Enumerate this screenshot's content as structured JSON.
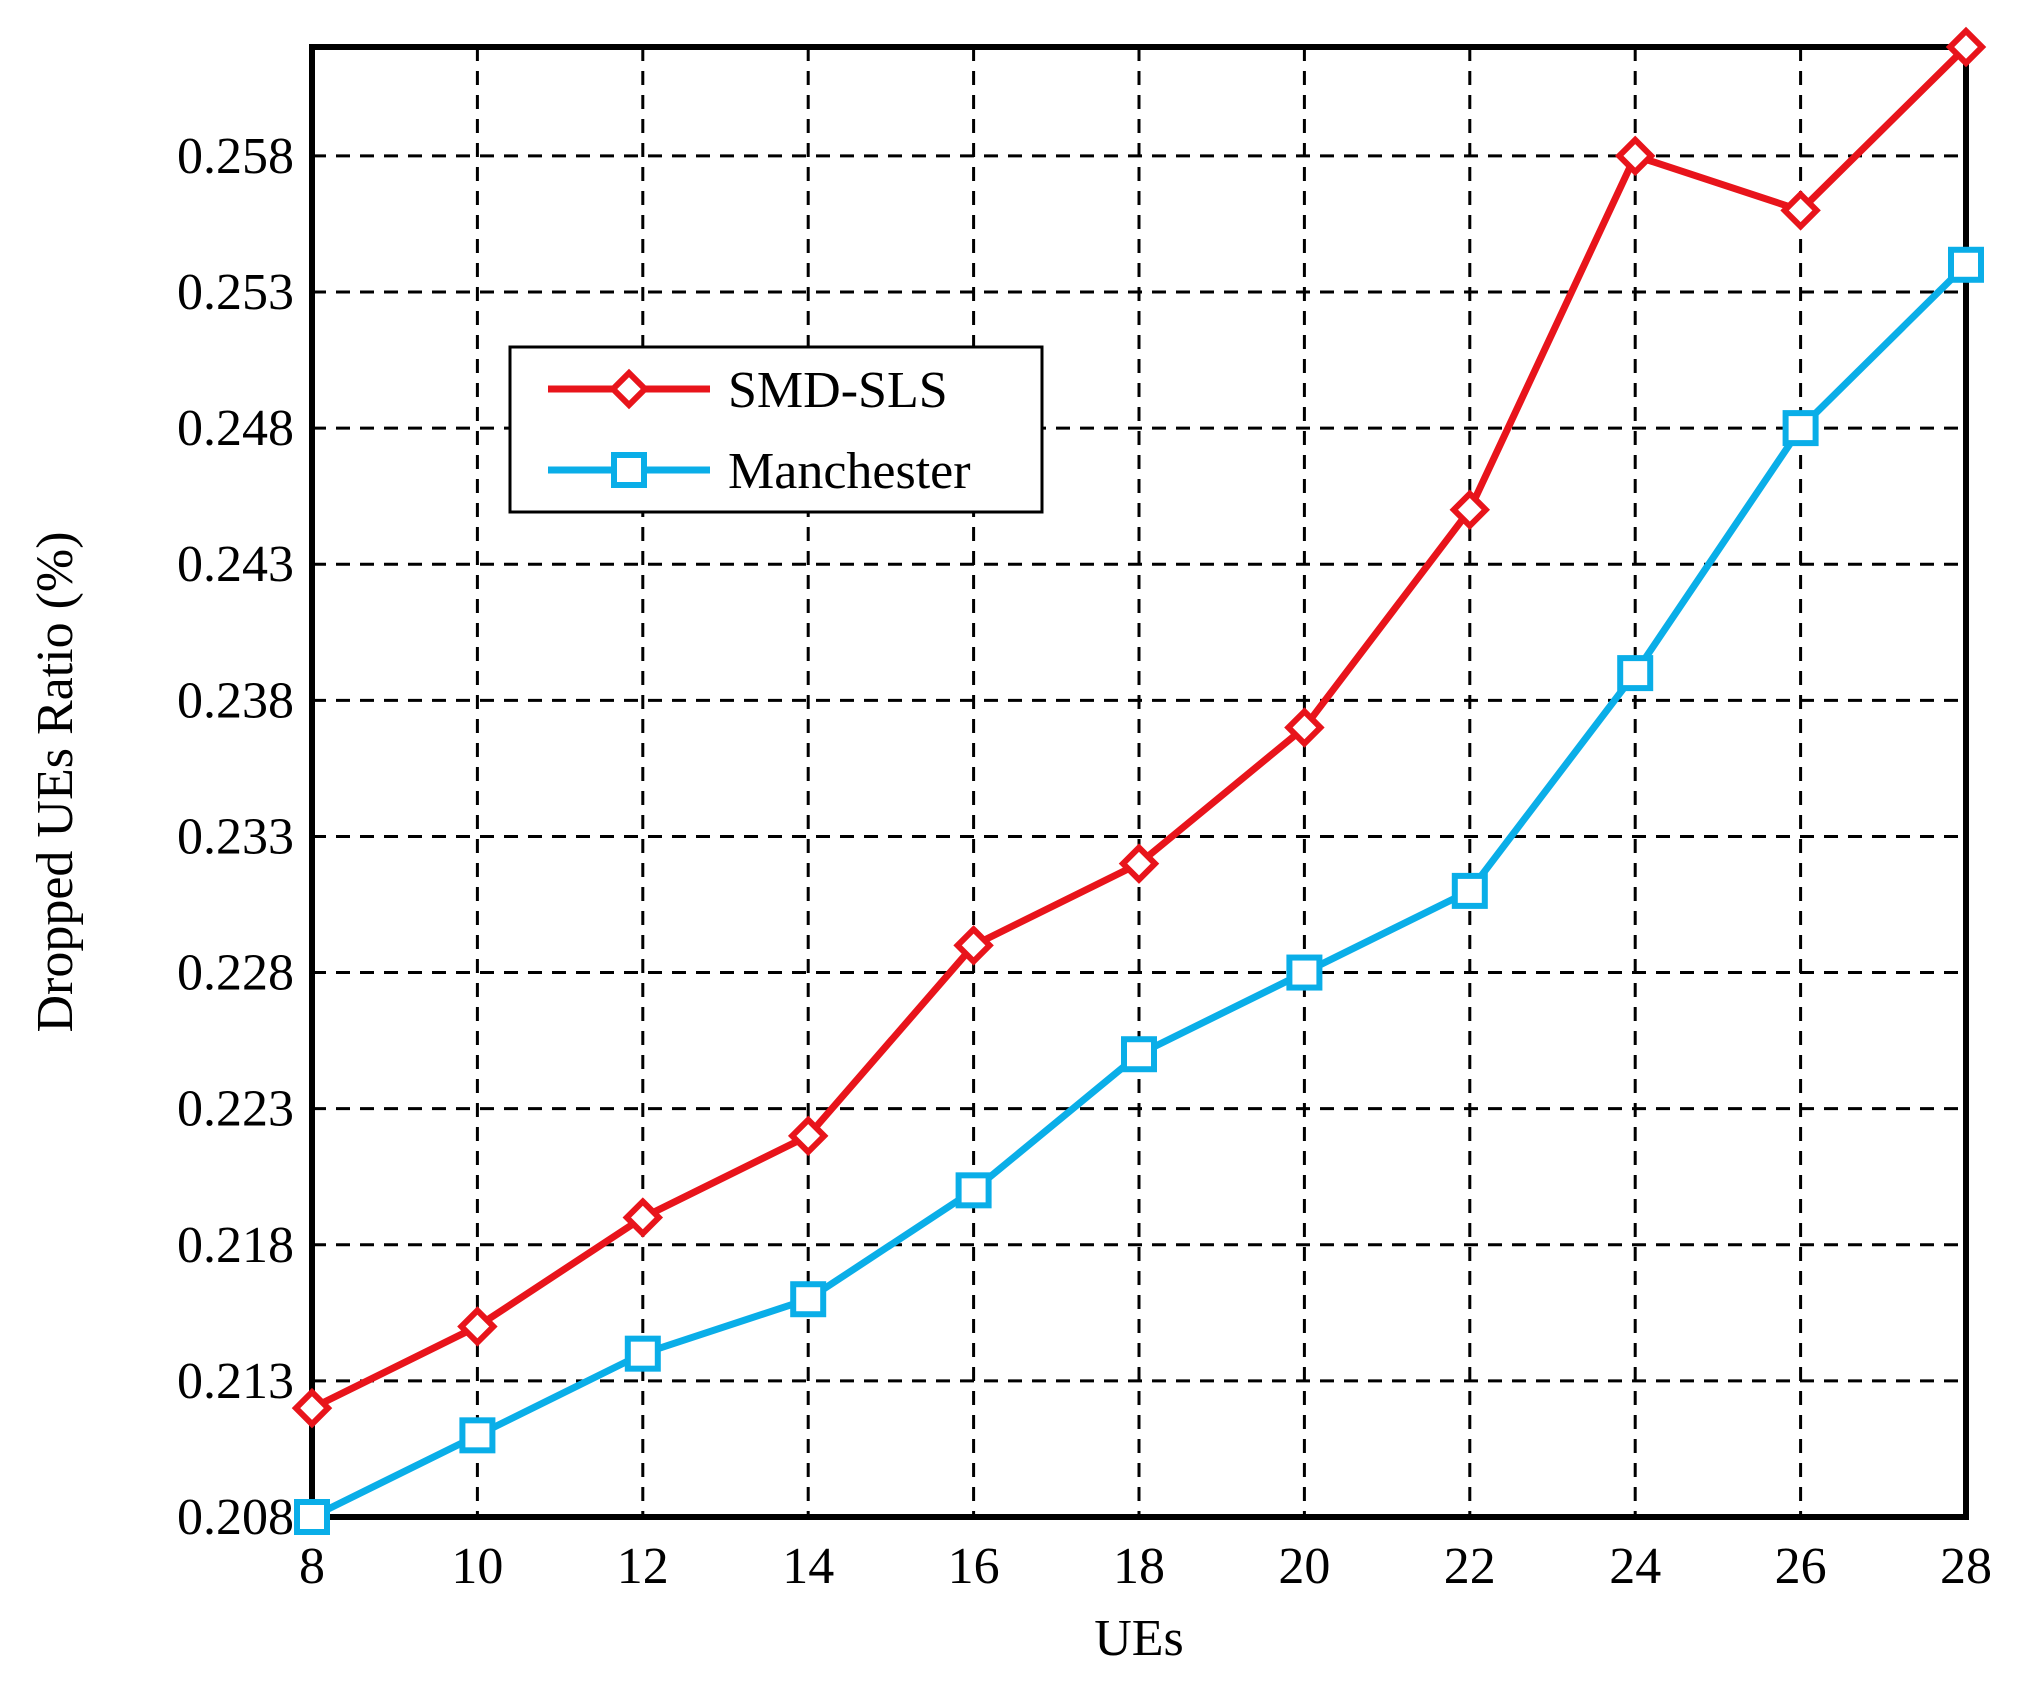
{
  "chart_data": {
    "type": "line",
    "title": "",
    "xlabel": "UEs",
    "ylabel": "Dropped UEs Ratio (%)",
    "x": [
      8,
      10,
      12,
      14,
      16,
      18,
      20,
      22,
      24,
      26,
      28
    ],
    "x_ticks": [
      "8",
      "10",
      "12",
      "14",
      "16",
      "18",
      "20",
      "22",
      "24",
      "26",
      "28"
    ],
    "y_ticks": [
      "0.208",
      "0.213",
      "0.218",
      "0.223",
      "0.228",
      "0.233",
      "0.238",
      "0.243",
      "0.248",
      "0.253",
      "0.258"
    ],
    "xlim": [
      8,
      28
    ],
    "ylim": [
      0.208,
      0.262
    ],
    "grid": true,
    "legend_position": "upper-left",
    "series": [
      {
        "name": "SMD-SLS",
        "color": "#e8141b",
        "marker": "diamond",
        "values": [
          0.212,
          0.215,
          0.219,
          0.222,
          0.229,
          0.232,
          0.237,
          0.245,
          0.258,
          0.256,
          0.262
        ]
      },
      {
        "name": "Manchester",
        "color": "#0aaee8",
        "marker": "square",
        "values": [
          0.208,
          0.211,
          0.214,
          0.216,
          0.22,
          0.225,
          0.228,
          0.231,
          0.239,
          0.248,
          0.254
        ]
      }
    ]
  }
}
